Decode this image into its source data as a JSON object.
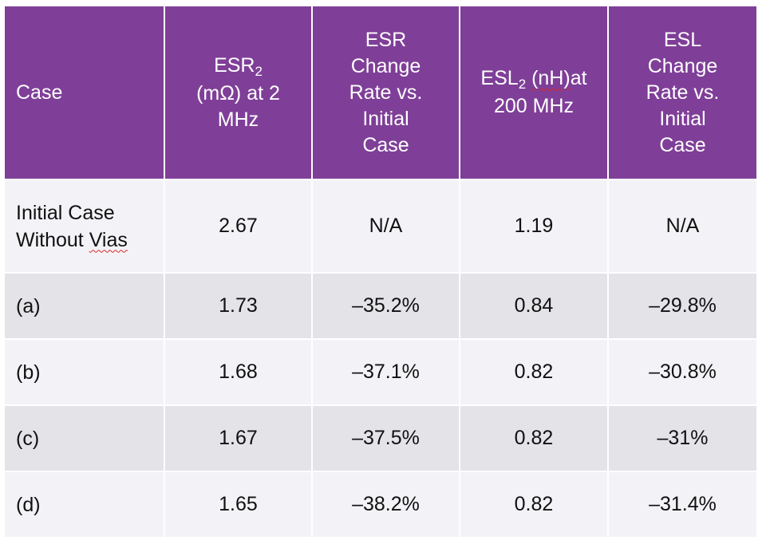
{
  "table": {
    "headers": {
      "case": "Case",
      "esr_prefix": "ESR",
      "esr_sub": "2",
      "esr_suffix_line2": "(mΩ) at 2",
      "esr_suffix_line3": "MHz",
      "esr_change": [
        "ESR",
        "Change",
        "Rate vs.",
        "Initial",
        "Case"
      ],
      "esl_prefix": "ESL",
      "esl_sub": "2",
      "esl_unit": "(nH)",
      "esl_at": "at",
      "esl_line2": "200 MHz",
      "esl_change": [
        "ESL",
        "Change",
        "Rate vs.",
        "Initial",
        "Case"
      ]
    },
    "rows": [
      {
        "case_line1": "Initial Case",
        "case_line2_a": "Without ",
        "case_line2_b": "Vias",
        "esr": "2.67",
        "esr_change": "N/A",
        "esl": "1.19",
        "esl_change": "N/A"
      },
      {
        "case": "(a)",
        "esr": "1.73",
        "esr_change": "–35.2%",
        "esl": "0.84",
        "esl_change": "–29.8%"
      },
      {
        "case": "(b)",
        "esr": "1.68",
        "esr_change": "–37.1%",
        "esl": "0.82",
        "esl_change": "–30.8%"
      },
      {
        "case": "(c)",
        "esr": "1.67",
        "esr_change": "–37.5%",
        "esl": "0.82",
        "esl_change": "–31%"
      },
      {
        "case": "(d)",
        "esr": "1.65",
        "esr_change": "–38.2%",
        "esl": "0.82",
        "esl_change": "–31.4%"
      }
    ]
  },
  "colors": {
    "header_bg": "#7f3f98",
    "row_light": "#f3f3f7",
    "row_dark": "#e3e3e8",
    "spellcheck_underline": "#d8282b"
  }
}
